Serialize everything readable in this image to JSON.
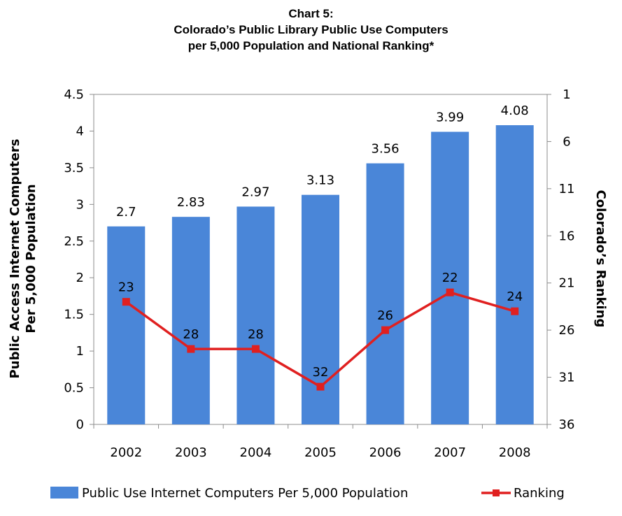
{
  "chart_data": {
    "type": "bar",
    "title": [
      "Chart 5:",
      "Colorado’s Public Library Public Use Computers",
      "per 5,000 Population and National Ranking*"
    ],
    "categories": [
      "2002",
      "2003",
      "2004",
      "2005",
      "2006",
      "2007",
      "2008"
    ],
    "series": [
      {
        "name": "Public Use Internet Computers Per 5,000 Population",
        "type": "bar",
        "axis": "left",
        "color": "#4a86d8",
        "values": [
          2.7,
          2.83,
          2.97,
          3.13,
          3.56,
          3.99,
          4.08
        ],
        "labels": [
          "2.7",
          "2.83",
          "2.97",
          "3.13",
          "3.56",
          "3.99",
          "4.08"
        ]
      },
      {
        "name": "Ranking",
        "type": "line",
        "axis": "right",
        "color": "#e02020",
        "values": [
          23,
          28,
          28,
          32,
          26,
          22,
          24
        ],
        "labels": [
          "23",
          "28",
          "28",
          "32",
          "26",
          "22",
          "24"
        ]
      }
    ],
    "ylabel_left": [
      "Public Access Internet Computers",
      "Per 5,000 Population"
    ],
    "ylabel_right": "Colorado’s Ranking",
    "ylim_left": [
      0,
      4.5
    ],
    "yticks_left": [
      "0",
      "0.5",
      "1",
      "1.5",
      "2",
      "2.5",
      "3",
      "3.5",
      "4",
      "4.5"
    ],
    "ylim_right": [
      1,
      36
    ],
    "right_axis_reversed": true,
    "yticks_right": [
      "1",
      "6",
      "11",
      "16",
      "21",
      "26",
      "31",
      "36"
    ],
    "grid": false,
    "legend_position": "bottom"
  }
}
